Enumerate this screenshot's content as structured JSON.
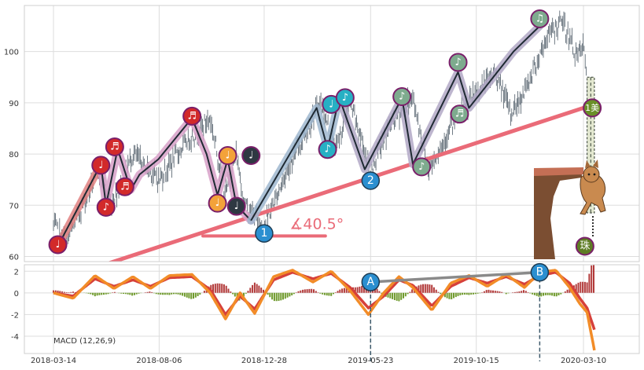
{
  "chart_data": [
    {
      "type": "line",
      "name": "price-panel",
      "y_ticks": [
        60,
        70,
        80,
        90,
        100
      ],
      "ylim": [
        59,
        109
      ],
      "x_labels": [
        "2018-03-14",
        "2018-08-06",
        "2018-12-28",
        "2019-05-23",
        "2019-10-15",
        "2020-03-10"
      ],
      "price_anchors": {
        "x": [
          "2018-03-14",
          "2018-04-01",
          "2018-05-15",
          "2018-06-01",
          "2018-07-01",
          "2018-08-06",
          "2018-09-10",
          "2018-10-15",
          "2018-11-05",
          "2018-11-20",
          "2018-12-01",
          "2018-12-28",
          "2019-02-01",
          "2019-03-15",
          "2019-04-05",
          "2019-04-25",
          "2019-05-23",
          "2019-06-20",
          "2019-07-20",
          "2019-08-10",
          "2019-09-10",
          "2019-10-15",
          "2019-11-10",
          "2019-12-01",
          "2019-12-20",
          "2020-01-20",
          "2020-02-10",
          "2020-03-01",
          "2020-03-10",
          "2020-03-20"
        ],
        "y": [
          66,
          63,
          77,
          70,
          80,
          75,
          82,
          87,
          72,
          80,
          70,
          66,
          78,
          90,
          81,
          90,
          77,
          86,
          91,
          77,
          85,
          92,
          96,
          88,
          92,
          103,
          106,
          99,
          101,
          88
        ]
      },
      "zigzag_segments": [
        {
          "x": [
            "2018-03-20",
            "2018-05-18"
          ],
          "y": [
            62,
            78
          ]
        },
        {
          "x": [
            "2018-05-18",
            "2018-05-25",
            "2018-06-10",
            "2018-06-28",
            "2018-07-10",
            "2018-08-05",
            "2018-09-20",
            "2018-10-10",
            "2018-10-25",
            "2018-11-08",
            "2018-11-20",
            "2018-12-10"
          ],
          "y": [
            78,
            70,
            81,
            73,
            76,
            79,
            87,
            80,
            72,
            79,
            70,
            67
          ]
        },
        {
          "x": [
            "2018-12-10",
            "2019-03-10",
            "2019-03-25",
            "2019-04-10"
          ],
          "y": [
            67,
            89,
            81,
            91
          ]
        },
        {
          "x": [
            "2019-04-10",
            "2019-05-15",
            "2019-07-05",
            "2019-07-20",
            "2019-09-20",
            "2019-10-05",
            "2019-12-05",
            "2020-01-10"
          ],
          "y": [
            91,
            77,
            91,
            78,
            96,
            89,
            100,
            105
          ]
        }
      ],
      "trendline": {
        "x": [
          "2018-05-25",
          "2020-03-10"
        ],
        "y": [
          58.5,
          89
        ]
      },
      "angle_baseline": {
        "x": [
          "2018-10-05",
          "2019-03-22"
        ],
        "y": [
          64,
          64
        ]
      },
      "angle_label": "∡40.5°",
      "circle_labels": [
        {
          "x": "2018-12-28",
          "y": 64.5,
          "label": "1",
          "color": "#2b8fd0"
        },
        {
          "x": "2019-05-23",
          "y": 74.8,
          "label": "2",
          "color": "#2b8fd0"
        }
      ],
      "notes": [
        {
          "x": "2018-03-20",
          "y": 62.3,
          "glyph": "♩",
          "color": "#d22a2a"
        },
        {
          "x": "2018-05-18",
          "y": 77.8,
          "glyph": "♩",
          "color": "#d22a2a"
        },
        {
          "x": "2018-05-25",
          "y": 69.6,
          "glyph": "♪",
          "color": "#d22a2a"
        },
        {
          "x": "2018-06-06",
          "y": 81.4,
          "glyph": "♬",
          "color": "#d22a2a"
        },
        {
          "x": "2018-06-20",
          "y": 73.6,
          "glyph": "♬",
          "color": "#d22a2a"
        },
        {
          "x": "2018-09-20",
          "y": 87.4,
          "glyph": "♬",
          "color": "#d22a2a"
        },
        {
          "x": "2018-10-25",
          "y": 70.4,
          "glyph": "♩",
          "color": "#f3a23a"
        },
        {
          "x": "2018-11-08",
          "y": 79.7,
          "glyph": "♩",
          "color": "#f3a23a"
        },
        {
          "x": "2018-11-20",
          "y": 69.8,
          "glyph": "♩",
          "color": "#2e3842"
        },
        {
          "x": "2018-12-10",
          "y": 79.7,
          "glyph": "♩",
          "color": "#2e3842"
        },
        {
          "x": "2019-03-25",
          "y": 80.9,
          "glyph": "♪",
          "color": "#27b0c4"
        },
        {
          "x": "2019-03-30",
          "y": 89.7,
          "glyph": "♩",
          "color": "#27b0c4"
        },
        {
          "x": "2019-04-18",
          "y": 91.0,
          "glyph": "♪",
          "color": "#27b0c4"
        },
        {
          "x": "2019-07-05",
          "y": 91.2,
          "glyph": "♪",
          "color": "#7eab8e"
        },
        {
          "x": "2019-08-01",
          "y": 77.5,
          "glyph": "♪",
          "color": "#7eab8e"
        },
        {
          "x": "2019-09-20",
          "y": 97.9,
          "glyph": "♪",
          "color": "#7eab8e"
        },
        {
          "x": "2019-09-22",
          "y": 87.8,
          "glyph": "♬",
          "color": "#7eab8e"
        },
        {
          "x": "2020-01-10",
          "y": 106.4,
          "glyph": "♫",
          "color": "#7eab8e"
        },
        {
          "x": "2020-03-22",
          "y": 89.0,
          "glyph": "1美",
          "color": "#6a8f28"
        },
        {
          "x": "2020-03-12",
          "y": 62.0,
          "glyph": "珠",
          "color": "#5e7c24"
        }
      ],
      "highlight_box": {
        "x": [
          "2020-03-15",
          "2020-03-25"
        ],
        "y": [
          68.5,
          95
        ]
      }
    },
    {
      "type": "line",
      "name": "macd-panel",
      "label": "MACD (12,26,9)",
      "y_ticks": [
        -4,
        -2,
        0,
        2
      ],
      "ylim": [
        -5.6,
        2.6
      ],
      "series": [
        {
          "color": "#d6403a",
          "x": [
            "2018-03-14",
            "2018-04-10",
            "2018-05-10",
            "2018-06-05",
            "2018-07-01",
            "2018-07-25",
            "2018-08-20",
            "2018-09-20",
            "2018-10-15",
            "2018-11-05",
            "2018-11-25",
            "2018-12-15",
            "2019-01-10",
            "2019-02-05",
            "2019-03-05",
            "2019-03-30",
            "2019-04-25",
            "2019-05-20",
            "2019-06-10",
            "2019-07-01",
            "2019-07-20",
            "2019-08-15",
            "2019-09-10",
            "2019-10-05",
            "2019-10-30",
            "2019-11-25",
            "2019-12-20",
            "2020-01-10",
            "2020-02-01",
            "2020-02-20",
            "2020-03-05",
            "2020-03-15",
            "2020-03-25"
          ],
          "y": [
            0,
            -0.3,
            1.3,
            0.6,
            1.2,
            0.6,
            1.4,
            1.5,
            0.3,
            -2.0,
            -0.3,
            -1.5,
            1.2,
            1.9,
            1.3,
            1.8,
            0.5,
            -1.4,
            -0.3,
            1.2,
            0.7,
            -1.2,
            0.6,
            1.4,
            0.9,
            1.5,
            0.8,
            1.6,
            1.9,
            0.9,
            -0.5,
            -1.4,
            -3.4
          ]
        },
        {
          "color": "#f28c28",
          "x": [
            "2018-03-14",
            "2018-04-10",
            "2018-05-10",
            "2018-06-05",
            "2018-07-01",
            "2018-07-25",
            "2018-08-20",
            "2018-09-20",
            "2018-10-15",
            "2018-11-05",
            "2018-11-25",
            "2018-12-15",
            "2019-01-10",
            "2019-02-05",
            "2019-03-05",
            "2019-03-30",
            "2019-04-25",
            "2019-05-20",
            "2019-06-10",
            "2019-07-01",
            "2019-07-20",
            "2019-08-15",
            "2019-09-10",
            "2019-10-05",
            "2019-10-30",
            "2019-11-25",
            "2019-12-20",
            "2020-01-10",
            "2020-02-01",
            "2020-02-20",
            "2020-03-05",
            "2020-03-15",
            "2020-03-25"
          ],
          "y": [
            0,
            -0.5,
            1.6,
            0.4,
            1.5,
            0.4,
            1.6,
            1.7,
            0.0,
            -2.4,
            0.0,
            -1.9,
            1.5,
            2.1,
            1.0,
            2.0,
            0.2,
            -2.0,
            0.0,
            1.5,
            0.5,
            -1.6,
            0.9,
            1.6,
            0.6,
            1.7,
            0.5,
            1.9,
            2.1,
            0.5,
            -1.0,
            -1.8,
            -5.3
          ]
        }
      ],
      "histogram_color_positive": "#b23a3a",
      "histogram_color_negative": "#6f9a2c",
      "connector": {
        "x": [
          "2019-05-23",
          "2020-01-10"
        ],
        "y": [
          1.0,
          1.9
        ]
      },
      "markers": [
        {
          "x": "2019-05-23",
          "y": 1.0,
          "label": "A"
        },
        {
          "x": "2020-01-10",
          "y": 1.9,
          "label": "B"
        }
      ]
    }
  ]
}
